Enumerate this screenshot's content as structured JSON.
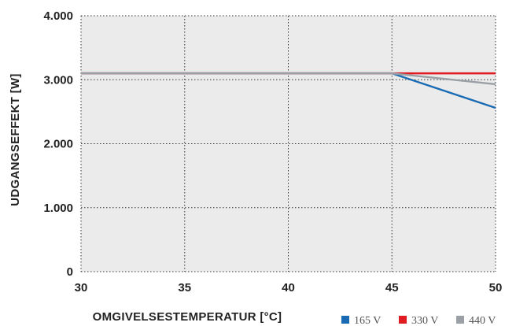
{
  "chart_data": {
    "type": "line",
    "title": "",
    "xlabel": "OMGIVELSESTEMPERATUR [°C]",
    "ylabel": "UDGANGSEFFEKT [W]",
    "xlim": [
      30,
      50
    ],
    "ylim": [
      0,
      4000
    ],
    "x_ticks": [
      30,
      35,
      40,
      45,
      50
    ],
    "x_tick_labels": [
      "30",
      "35",
      "40",
      "45",
      "50"
    ],
    "y_ticks": [
      0,
      1000,
      2000,
      3000,
      4000
    ],
    "y_tick_labels": [
      "0",
      "1.000",
      "2.000",
      "3.000",
      "4.000"
    ],
    "grid": true,
    "legend_position": "bottom-right",
    "series": [
      {
        "name": "165 V",
        "color": "#1a6bb3",
        "x": [
          30,
          45,
          50
        ],
        "y": [
          3100,
          3100,
          2560
        ]
      },
      {
        "name": "330 V",
        "color": "#e11b22",
        "x": [
          30,
          45,
          50
        ],
        "y": [
          3100,
          3100,
          3100
        ]
      },
      {
        "name": "440 V",
        "color": "#9aa0a6",
        "x": [
          30,
          45,
          50
        ],
        "y": [
          3100,
          3100,
          2930
        ]
      }
    ]
  },
  "colors": {
    "plot_background": "#ebebeb",
    "grid": "#333333",
    "text": "#222222"
  }
}
